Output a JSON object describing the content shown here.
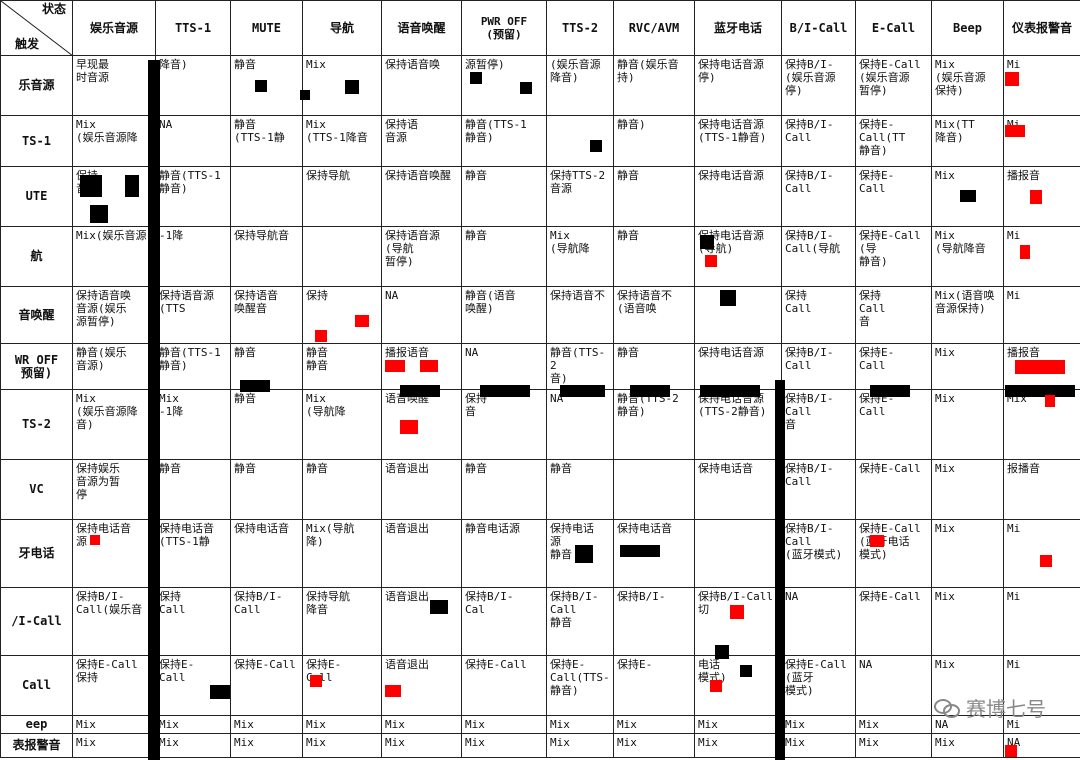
{
  "corner": {
    "state": "状态",
    "trigger": "触发"
  },
  "columns": [
    "娱乐音源",
    "TTS-1",
    "MUTE",
    "导航",
    "语音唤醒",
    "PWR OFF\n(预留)",
    "TTS-2",
    "RVC/AVM",
    "蓝牙电话",
    "B/I-Call",
    "E-Call",
    "Beep",
    "仪表报警音"
  ],
  "rows": [
    {
      "head": "乐音源",
      "cells": [
        "早现最\n时音源",
        "降音)",
        "静音",
        "Mix",
        "保持语音唤",
        "源暂停)",
        "(娱乐音源\n降音)",
        "静音(娱乐音\n持)",
        "保持电话音源\n停)",
        "保持B/I-\n(娱乐音源\n停)",
        "保持E-Call\n(娱乐音源\n暂停)",
        "Mix\n(娱乐音源\n保持)",
        "Mi"
      ]
    },
    {
      "head": "TS-1",
      "cells": [
        "Mix\n(娱乐音源降",
        "NA",
        "静音\n(TTS-1静",
        "Mix\n(TTS-1降音",
        "保持语\n音源",
        "静音(TTS-1\n静音)",
        "",
        "静音)",
        "保持电话音源\n(TTS-1静音)",
        "保持B/I-\nCall",
        "保持E-\nCall(TT\n静音)",
        "Mix(TT\n降音)",
        "Mi"
      ]
    },
    {
      "head": "UTE",
      "cells": [
        "保持\n音源",
        "静音(TTS-1\n静音)",
        "",
        "保持导航",
        "保持语音唤醒",
        "静音",
        "保持TTS-2\n音源",
        "静音",
        "保持电话音源",
        "保持B/I-\nCall",
        "保持E-\nCall",
        "Mix",
        "播报音"
      ]
    },
    {
      "head": "航",
      "cells": [
        "Mix(娱乐音源",
        "-1降",
        "保持导航音",
        "",
        "保持语音源\n(导航\n暂停)",
        "静音",
        "Mix\n(导航降",
        "静音",
        "保持电话音源\n(导航)",
        "保持B/I-\nCall(导航",
        "保持E-Call\n(导\n静音)",
        "Mix\n(导航降音",
        "Mi"
      ]
    },
    {
      "head": "音唤醒",
      "cells": [
        "保持语音唤\n音源(娱乐\n源暂停)",
        "保持语音源\n(TTS",
        "保持语音\n唤醒音",
        "保持",
        "NA",
        "静音(语音\n唤醒)",
        "保持语音不",
        "保持语音不\n(语音唤",
        "",
        "保持\nCall",
        "保持\nCall\n音",
        "Mix(语音唤\n音源保持)",
        "Mi"
      ]
    },
    {
      "head": "WR OFF\n预留)",
      "cells": [
        "静音(娱乐\n音源)",
        "静音(TTS-1\n静音)",
        "静音",
        "静音\n静音",
        "播报语音",
        "NA",
        "静音(TTS-2\n音)",
        "静音",
        "保持电话音源",
        "保持B/I-\nCall",
        "保持E-\nCall",
        "Mix",
        "播报音"
      ]
    },
    {
      "head": "TS-2",
      "cells": [
        "Mix\n(娱乐音源降\n音)",
        "Mix\n-1降",
        "静音",
        "Mix\n(导航降",
        "语音唤醒",
        "保持\n音",
        "NA",
        "静音(TTS-2\n静音)",
        "保持电话音源\n(TTS-2静音)",
        "保持B/I-\nCall\n音",
        "保持E-\nCall",
        "Mix",
        "Mix"
      ]
    },
    {
      "head": "VC",
      "cells": [
        "保持娱乐\n音源为暂\n停",
        "静音",
        "静音",
        "静音",
        "语音退出",
        "静音",
        "静音",
        "",
        "保持电话音",
        "保持B/I-\nCall",
        "保持E-Call",
        "Mix",
        "报播音"
      ]
    },
    {
      "head": "牙电话",
      "cells": [
        "保持电话音\n源",
        "保持电话音\n(TTS-1静",
        "保持电话音",
        "Mix(导航\n降)",
        "语音退出",
        "静音电话源",
        "保持电话\n源\n静音",
        "保持电话音",
        "",
        "保持B/I-\nCall\n(蓝牙模式)",
        "保持E-Call\n(蓝牙电话\n模式)",
        "Mix",
        "Mi"
      ]
    },
    {
      "head": "/I-Call",
      "cells": [
        "保持B/I-\nCall(娱乐音",
        "保持\nCall",
        "保持B/I-\nCall",
        "保持导航\n降音",
        "语音退出",
        "保持B/I-\nCal",
        "保持B/I-\nCall\n静音",
        "保持B/I-",
        "保持B/I-Call\n切",
        "NA",
        "保持E-Call",
        "Mix",
        "Mi"
      ]
    },
    {
      "head": "Call",
      "cells": [
        "保持E-Call\n保持",
        "保持E-\nCall",
        "保持E-Call",
        "保持E-\nCall",
        "语音退出",
        "保持E-Call",
        "保持E-\nCall(TTS-\n静音)",
        "保持E-",
        "电话\n模式)",
        "保持E-Call\n(蓝牙\n模式)",
        "NA",
        "Mix",
        "Mi"
      ]
    },
    {
      "head": "eep",
      "cells": [
        "Mix",
        "Mix",
        "Mix",
        "Mix",
        "Mix",
        "Mix",
        "Mix",
        "Mix",
        "Mix",
        "Mix",
        "Mix",
        "NA",
        "Mi"
      ]
    },
    {
      "head": "表报警音",
      "cells": [
        "Mix",
        "Mix",
        "Mix",
        "Mix",
        "Mix",
        "Mix",
        "Mix",
        "Mix",
        "Mix",
        "Mix",
        "Mix",
        "Mix",
        "NA"
      ]
    }
  ],
  "watermark": "赛博七号"
}
